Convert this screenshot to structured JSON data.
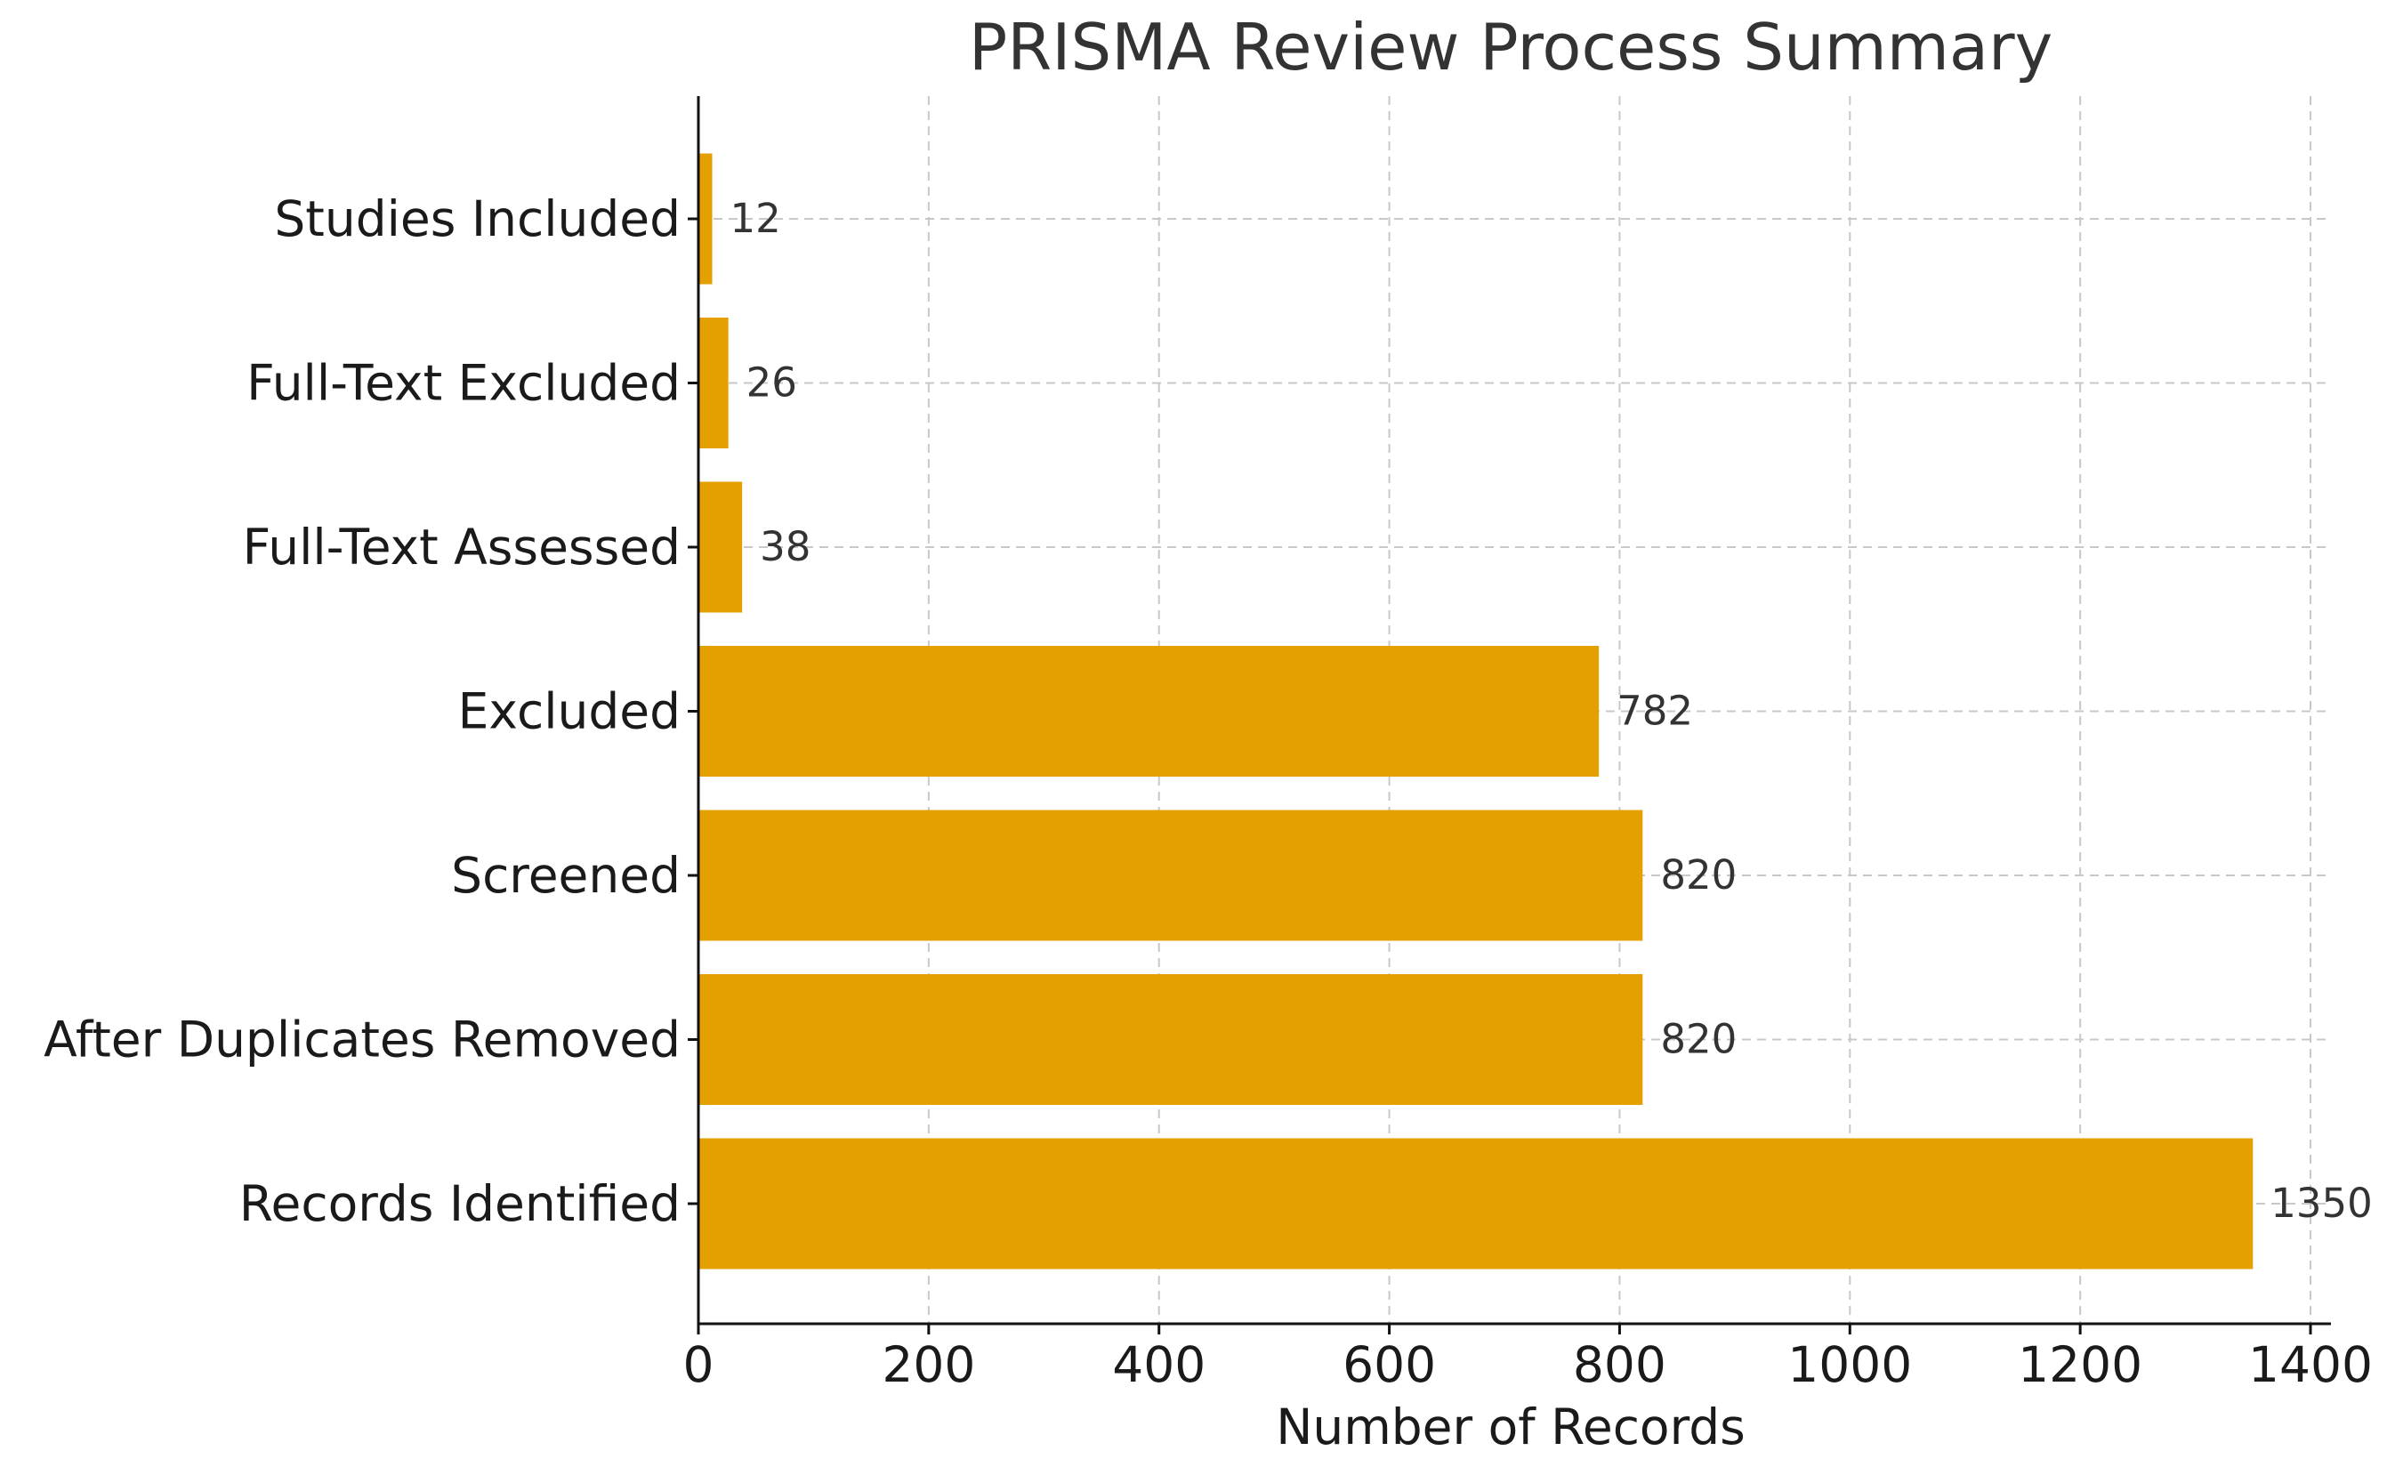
{
  "chart_data": {
    "type": "bar",
    "orientation": "horizontal",
    "title": "PRISMA Review Process Summary",
    "xlabel": "Number of Records",
    "ylabel": "",
    "categories": [
      "Records Identified",
      "After Duplicates Removed",
      "Screened",
      "Excluded",
      "Full-Text Assessed",
      "Full-Text Excluded",
      "Studies Included"
    ],
    "values": [
      1350,
      820,
      820,
      782,
      38,
      26,
      12
    ],
    "xlim": [
      0,
      1400
    ],
    "xticks": [
      0,
      200,
      400,
      600,
      800,
      1000,
      1200,
      1400
    ],
    "grid": true,
    "bar_color": "#E3A000",
    "data_labels": true
  }
}
